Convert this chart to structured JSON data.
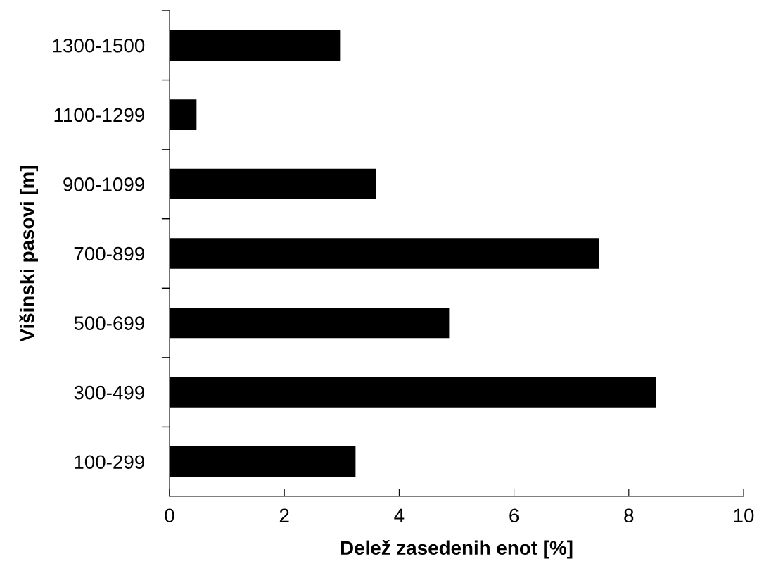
{
  "chart_data": {
    "type": "bar",
    "orientation": "horizontal",
    "xlabel": "Delež zasedenih enot [%]",
    "ylabel": "Višinski pasovi [m]",
    "categories": [
      "1300-1500",
      "1100-1299",
      "900-1099",
      "700-899",
      "500-699",
      "300-499",
      "100-299"
    ],
    "values": [
      2.97,
      0.47,
      3.6,
      7.48,
      4.87,
      8.47,
      3.24
    ],
    "color": "#000000",
    "xlim": [
      0,
      10
    ],
    "xticks": [
      0,
      2,
      4,
      6,
      8,
      10
    ],
    "grid": false,
    "legend": false
  }
}
